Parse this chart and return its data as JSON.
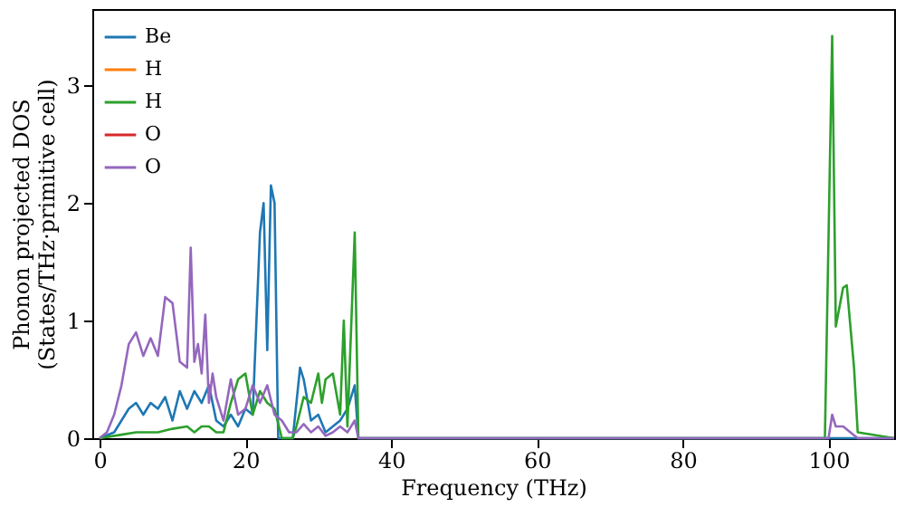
{
  "chart_data": {
    "type": "line",
    "xlabel": "Frequency (THz)",
    "ylabel": "Phonon projected DOS\n(States/THz·primitive cell)",
    "xlim": [
      -1,
      109
    ],
    "ylim": [
      0,
      3.65
    ],
    "xticks": [
      0,
      20,
      40,
      60,
      80,
      100
    ],
    "yticks": [
      0,
      1,
      2,
      3
    ],
    "legend": "top left",
    "series": [
      {
        "name": "Be",
        "color": "#1f77b4",
        "x": [
          0,
          2,
          3,
          4,
          5,
          6,
          7,
          8,
          9,
          10,
          11,
          12,
          13,
          14,
          15,
          16,
          17,
          18,
          19,
          20,
          21,
          22,
          22.5,
          23,
          23.5,
          24,
          24.5,
          26.5,
          27.5,
          28,
          29,
          30,
          31,
          32,
          33,
          34,
          35,
          35.5,
          100,
          109
        ],
        "values": [
          0,
          0.05,
          0.15,
          0.25,
          0.3,
          0.2,
          0.3,
          0.25,
          0.35,
          0.15,
          0.4,
          0.25,
          0.4,
          0.3,
          0.45,
          0.15,
          0.1,
          0.2,
          0.1,
          0.25,
          0.2,
          1.75,
          2.0,
          0.75,
          2.15,
          2.0,
          0,
          0,
          0.6,
          0.5,
          0.15,
          0.2,
          0.05,
          0.1,
          0.15,
          0.25,
          0.45,
          0,
          0,
          0
        ]
      },
      {
        "name": "H",
        "color": "#ff7f0e"
      },
      {
        "name": "H",
        "color": "#2ca02c",
        "x": [
          0,
          3,
          5,
          8,
          10,
          12,
          13,
          14,
          15,
          16,
          17,
          18,
          19,
          20,
          21,
          22,
          23,
          24,
          25,
          26.5,
          27,
          28,
          29,
          30,
          30.5,
          31,
          32,
          33,
          33.5,
          34,
          35,
          35.5,
          99.5,
          100.5,
          101,
          102,
          102.5,
          103.5,
          104,
          109
        ],
        "values": [
          0,
          0.03,
          0.05,
          0.05,
          0.08,
          0.1,
          0.05,
          0.1,
          0.1,
          0.05,
          0.05,
          0.3,
          0.5,
          0.55,
          0.2,
          0.4,
          0.3,
          0.25,
          0,
          0,
          0.1,
          0.35,
          0.3,
          0.55,
          0.3,
          0.5,
          0.55,
          0.2,
          1.0,
          0.1,
          1.75,
          0,
          0,
          3.42,
          0.95,
          1.28,
          1.3,
          0.6,
          0.05,
          0
        ]
      },
      {
        "name": "O",
        "color": "#d62728"
      },
      {
        "name": "O",
        "color": "#9467bd",
        "x": [
          0,
          1,
          2,
          3,
          4,
          5,
          6,
          7,
          8,
          9,
          10,
          11,
          12,
          12.5,
          13,
          13.5,
          14,
          14.5,
          15,
          15.5,
          16,
          17,
          18,
          19,
          20,
          21,
          22,
          23,
          24,
          25,
          26,
          27,
          28,
          29,
          30,
          31,
          32,
          33,
          34,
          35,
          35.5,
          100,
          100.5,
          101,
          102,
          103,
          104,
          109
        ],
        "values": [
          0,
          0.05,
          0.2,
          0.45,
          0.8,
          0.9,
          0.7,
          0.85,
          0.7,
          1.2,
          1.15,
          0.65,
          0.6,
          1.62,
          0.65,
          0.8,
          0.55,
          1.05,
          0.3,
          0.55,
          0.35,
          0.15,
          0.5,
          0.2,
          0.25,
          0.45,
          0.3,
          0.45,
          0.2,
          0.15,
          0.05,
          0.05,
          0.12,
          0.05,
          0.1,
          0.02,
          0.05,
          0.1,
          0.05,
          0.15,
          0,
          0,
          0.2,
          0.1,
          0.1,
          0.05,
          0,
          0
        ]
      }
    ]
  }
}
